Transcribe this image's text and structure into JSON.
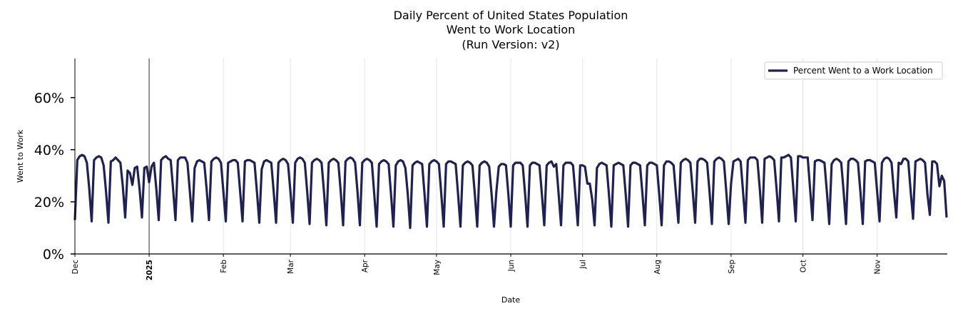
{
  "chart_data": {
    "type": "line",
    "title": [
      "Daily Percent of United States Population",
      "Went to Work Location",
      "(Run Version: v2)"
    ],
    "xlabel": "Date",
    "ylabel": "Went to Work",
    "x_range": [
      "2024-12-01",
      "2025-11-30"
    ],
    "x_frequency": "daily",
    "x_ticks": [
      {
        "date": "2024-12-01",
        "label": "Dec",
        "bold": false
      },
      {
        "date": "2025-01-01",
        "label": "2025",
        "bold": true
      },
      {
        "date": "2025-02-01",
        "label": "Feb",
        "bold": false
      },
      {
        "date": "2025-03-01",
        "label": "Mar",
        "bold": false
      },
      {
        "date": "2025-04-01",
        "label": "Apr",
        "bold": false
      },
      {
        "date": "2025-05-01",
        "label": "May",
        "bold": false
      },
      {
        "date": "2025-06-01",
        "label": "Jun",
        "bold": false
      },
      {
        "date": "2025-07-01",
        "label": "Jul",
        "bold": false
      },
      {
        "date": "2025-08-01",
        "label": "Aug",
        "bold": false
      },
      {
        "date": "2025-09-01",
        "label": "Sep",
        "bold": false
      },
      {
        "date": "2025-10-01",
        "label": "Oct",
        "bold": false
      },
      {
        "date": "2025-11-01",
        "label": "Nov",
        "bold": false
      }
    ],
    "ylim": [
      0,
      75
    ],
    "y_ticks": [
      {
        "value": 0,
        "label": "0%"
      },
      {
        "value": 20,
        "label": "20%"
      },
      {
        "value": 40,
        "label": "40%"
      },
      {
        "value": 60,
        "label": "60%"
      }
    ],
    "grid": "vertical at month starts",
    "year_marker": "2025-01-01",
    "legend_placement": "top-right",
    "series": [
      {
        "name": "Percent Went to a Work Location",
        "color": "#1f2152",
        "values": [
          13,
          36,
          37.5,
          38,
          37.5,
          35,
          25,
          12.5,
          36,
          37,
          37.5,
          37,
          34,
          24,
          12,
          35.5,
          36,
          37,
          36,
          35,
          26,
          14,
          32,
          31,
          26.5,
          33,
          33.5,
          25,
          14,
          33,
          33.5,
          27.5,
          33.5,
          35,
          25,
          13,
          36,
          37,
          37.5,
          36.5,
          36,
          25,
          13,
          36,
          37,
          37,
          37,
          35,
          24,
          12.5,
          33,
          35.5,
          36,
          35.5,
          35,
          25,
          13,
          35.5,
          36.5,
          37,
          36.5,
          35,
          24,
          12.5,
          35,
          35.5,
          36,
          36,
          35,
          24,
          12.5,
          35.5,
          36,
          36,
          35.5,
          35,
          24,
          12,
          32.5,
          35.5,
          36,
          35.5,
          35,
          24,
          12,
          35,
          36,
          36.5,
          36,
          34.5,
          24,
          12,
          35,
          36.5,
          37,
          36.5,
          35,
          24,
          11.5,
          35,
          36,
          36.5,
          36,
          35,
          24,
          11,
          35,
          36,
          36.5,
          36,
          35,
          24,
          11,
          35.5,
          36.5,
          37,
          36.5,
          35,
          24,
          11,
          35,
          36,
          36.5,
          36,
          35,
          23,
          10.5,
          34.5,
          35.5,
          36,
          35.5,
          34.5,
          23,
          10.5,
          34,
          35.5,
          36,
          35.5,
          33,
          23,
          10,
          34,
          35,
          35.5,
          35,
          34.5,
          23,
          10.5,
          34.5,
          35.5,
          36,
          35.5,
          34.5,
          23,
          10.5,
          34.5,
          35.5,
          35.5,
          35,
          34.5,
          23,
          10.5,
          34,
          35,
          35.5,
          35,
          34,
          23,
          10.5,
          34,
          35,
          35.5,
          35,
          33.5,
          23,
          10.5,
          24,
          33.5,
          34.5,
          34.5,
          34,
          23,
          10.5,
          34,
          35,
          35,
          35,
          34,
          23,
          10.5,
          34,
          35,
          35,
          34.5,
          34,
          23,
          11,
          34,
          35,
          35.5,
          33.5,
          34.5,
          23,
          11,
          34,
          35,
          35,
          35,
          34,
          23,
          11,
          34,
          34,
          33.5,
          27,
          27,
          21,
          11,
          33,
          34.5,
          35,
          34.5,
          34,
          23,
          10.5,
          34,
          34.5,
          35,
          34.5,
          34,
          23,
          10.5,
          34,
          35,
          35,
          34.5,
          34,
          23,
          11,
          34,
          35,
          35,
          34.5,
          34,
          23,
          11,
          34,
          35.5,
          35.5,
          35,
          34,
          23,
          12,
          35,
          36,
          36.5,
          36,
          35,
          24,
          12,
          35.5,
          36.5,
          36.5,
          36,
          35,
          24,
          11.5,
          35.5,
          36.5,
          37,
          36.5,
          35.5,
          24,
          11.5,
          27,
          35.5,
          36,
          36.5,
          35.5,
          24,
          12,
          36,
          37,
          37,
          37,
          36,
          25,
          12,
          36.5,
          37,
          37.5,
          37,
          36,
          25,
          12.5,
          37,
          37,
          37.5,
          38,
          37,
          25,
          12.5,
          37.5,
          37.5,
          37,
          37,
          37,
          25,
          13,
          35.5,
          36,
          36,
          35.5,
          35,
          24,
          11.5,
          34.5,
          36,
          36.5,
          36,
          35,
          24,
          11.5,
          35.5,
          36.5,
          36.5,
          36,
          35,
          24,
          11.5,
          35.5,
          36,
          36,
          35.5,
          35,
          24,
          12.5,
          35,
          36.5,
          37,
          36.5,
          35,
          24,
          14,
          35,
          34.5,
          36.5,
          36.5,
          35.5,
          24,
          13.5,
          35.5,
          36,
          36.5,
          36,
          35,
          23,
          15,
          35.5,
          35.5,
          34.5,
          26,
          30,
          28,
          14
        ]
      }
    ]
  }
}
